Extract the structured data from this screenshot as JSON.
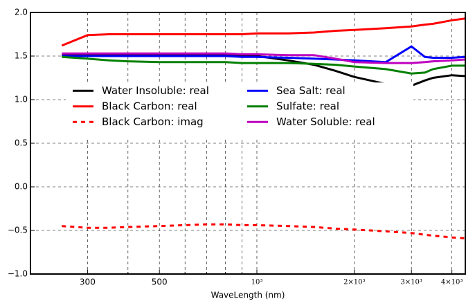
{
  "chart_data": {
    "type": "line",
    "x_label": "WaveLength (nm)",
    "x_scale": "log",
    "xlim": [
      200,
      4400
    ],
    "xticks": [
      300,
      500,
      {
        "value": 1000,
        "label": "10³"
      },
      {
        "value": 2000,
        "label": "2×10³"
      },
      {
        "value": 3000,
        "label": "3×10³"
      },
      {
        "value": 4000,
        "label": "4×10³"
      }
    ],
    "x_minor_ticks": [
      200,
      400,
      600,
      700,
      800,
      900
    ],
    "ylim": [
      -1.0,
      2.0
    ],
    "yticks": [
      {
        "value": -1.0,
        "label": "−1.0"
      },
      {
        "value": -0.5,
        "label": "−0.5"
      },
      {
        "value": 0.0,
        "label": "0.0"
      },
      {
        "value": 0.5,
        "label": "0.5"
      },
      {
        "value": 1.0,
        "label": "1.0"
      },
      {
        "value": 1.5,
        "label": "1.5"
      },
      {
        "value": 2.0,
        "label": "2.0"
      }
    ],
    "grid": true,
    "legend": {
      "loc": "center left",
      "ncol": 2
    },
    "x": [
      250,
      300,
      350,
      400,
      500,
      600,
      700,
      800,
      900,
      1000,
      1250,
      1500,
      1750,
      2000,
      2500,
      3000,
      3300,
      3500,
      4000,
      4400
    ],
    "series": [
      {
        "name": "Water Insoluble: real",
        "color": "#000000",
        "style": "solid",
        "values": [
          1.51,
          1.51,
          1.51,
          1.51,
          1.51,
          1.51,
          1.51,
          1.51,
          1.51,
          1.5,
          1.45,
          1.4,
          1.33,
          1.26,
          1.18,
          1.16,
          1.22,
          1.25,
          1.28,
          1.27
        ]
      },
      {
        "name": "Black Carbon: real",
        "color": "#ff0000",
        "style": "solid",
        "values": [
          1.62,
          1.74,
          1.75,
          1.75,
          1.75,
          1.75,
          1.75,
          1.75,
          1.75,
          1.76,
          1.76,
          1.77,
          1.79,
          1.8,
          1.82,
          1.84,
          1.86,
          1.87,
          1.91,
          1.93
        ]
      },
      {
        "name": "Black Carbon: imag",
        "color": "#ff0000",
        "style": "dashed",
        "values": [
          -0.45,
          -0.47,
          -0.47,
          -0.46,
          -0.45,
          -0.44,
          -0.43,
          -0.43,
          -0.44,
          -0.44,
          -0.45,
          -0.46,
          -0.48,
          -0.49,
          -0.51,
          -0.53,
          -0.55,
          -0.56,
          -0.58,
          -0.59
        ]
      },
      {
        "name": "Sea Salt: real",
        "color": "#0000ff",
        "style": "solid",
        "values": [
          1.5,
          1.5,
          1.5,
          1.5,
          1.5,
          1.5,
          1.5,
          1.5,
          1.49,
          1.49,
          1.48,
          1.47,
          1.46,
          1.45,
          1.43,
          1.61,
          1.49,
          1.48,
          1.48,
          1.49
        ]
      },
      {
        "name": "Sulfate: real",
        "color": "#008000",
        "style": "solid",
        "values": [
          1.49,
          1.47,
          1.45,
          1.44,
          1.43,
          1.43,
          1.43,
          1.43,
          1.42,
          1.42,
          1.42,
          1.41,
          1.4,
          1.38,
          1.35,
          1.3,
          1.31,
          1.35,
          1.39,
          1.39
        ]
      },
      {
        "name": "Water Soluble: real",
        "color": "#bf00bf",
        "style": "solid",
        "values": [
          1.53,
          1.53,
          1.53,
          1.53,
          1.53,
          1.53,
          1.53,
          1.53,
          1.52,
          1.52,
          1.51,
          1.51,
          1.47,
          1.43,
          1.42,
          1.42,
          1.43,
          1.44,
          1.45,
          1.46
        ]
      }
    ]
  }
}
